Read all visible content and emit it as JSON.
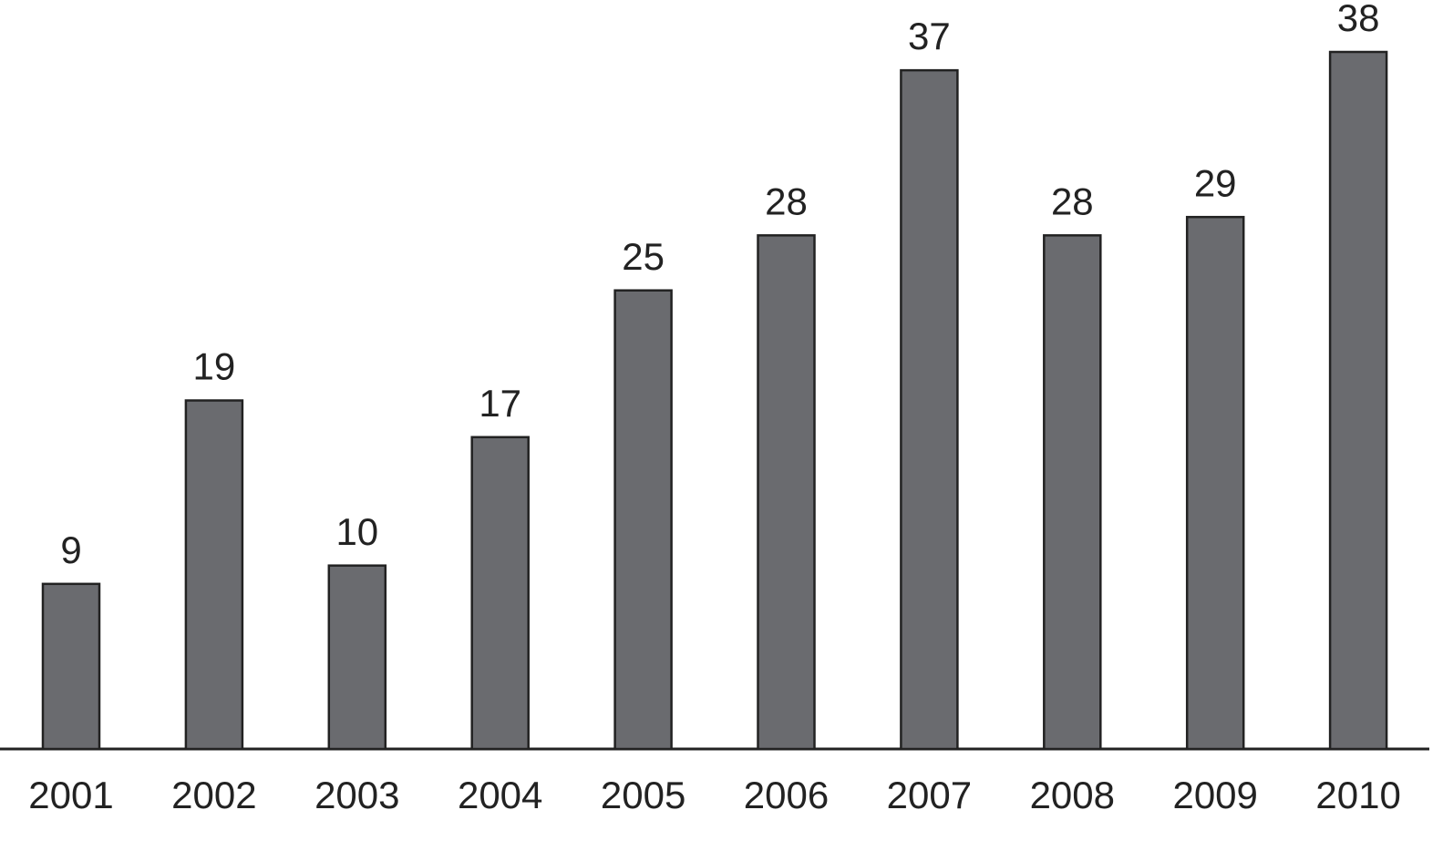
{
  "chart_data": {
    "type": "bar",
    "categories": [
      "2001",
      "2002",
      "2003",
      "2004",
      "2005",
      "2006",
      "2007",
      "2008",
      "2009",
      "2010"
    ],
    "values": [
      9,
      19,
      10,
      17,
      25,
      28,
      37,
      28,
      29,
      38
    ],
    "color": "#6a6b6f"
  }
}
